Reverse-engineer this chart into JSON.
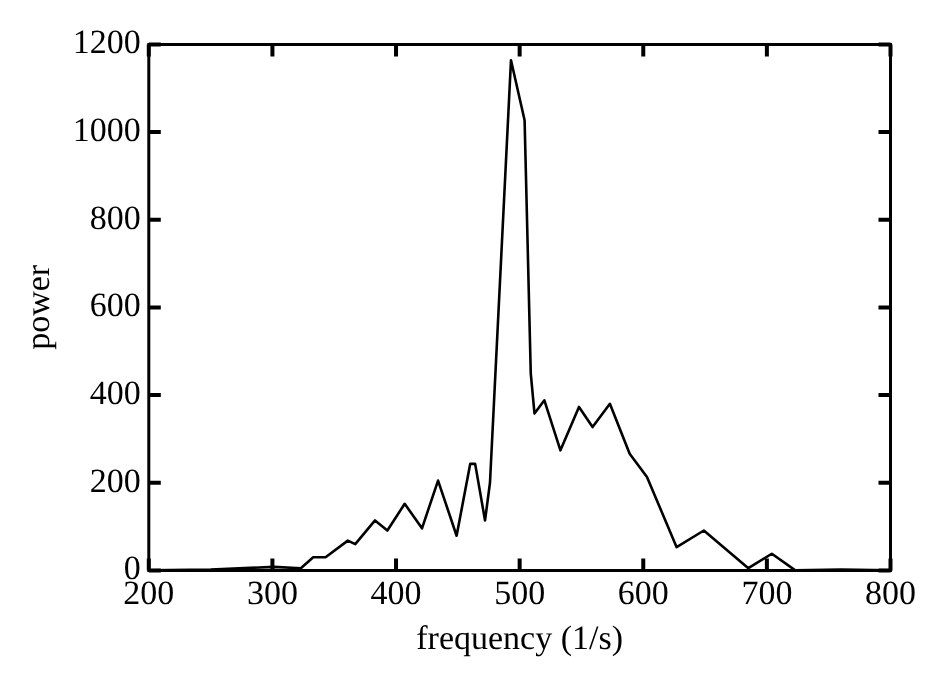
{
  "chart_data": {
    "type": "line",
    "xlabel": "frequency (1/s)",
    "ylabel": "power",
    "x": [
      200,
      250,
      301,
      323,
      333,
      343,
      361,
      367,
      383,
      393,
      407,
      421,
      434,
      449,
      460,
      464,
      472,
      476,
      493,
      504,
      509,
      512,
      520,
      533,
      548,
      559,
      573,
      589,
      603,
      627,
      649,
      685,
      704,
      723,
      760,
      800
    ],
    "series": [
      {
        "color": "#000000",
        "values": [
          0,
          2,
          8,
          5,
          30,
          30,
          68,
          60,
          114,
          91,
          152,
          96,
          205,
          79,
          243,
          243,
          114,
          200,
          1164,
          1027,
          449,
          358,
          388,
          274,
          373,
          327,
          380,
          266,
          213,
          53,
          91,
          5,
          38,
          0,
          2,
          0
        ]
      }
    ],
    "xlim": [
      200,
      800
    ],
    "xticks": [
      200,
      300,
      400,
      500,
      600,
      700,
      800
    ],
    "ylim": [
      0,
      1200
    ],
    "yticks": [
      0,
      200,
      400,
      600,
      800,
      1000,
      1200
    ],
    "grid": false,
    "legend": false,
    "marker": "none",
    "line_style": "solid"
  }
}
